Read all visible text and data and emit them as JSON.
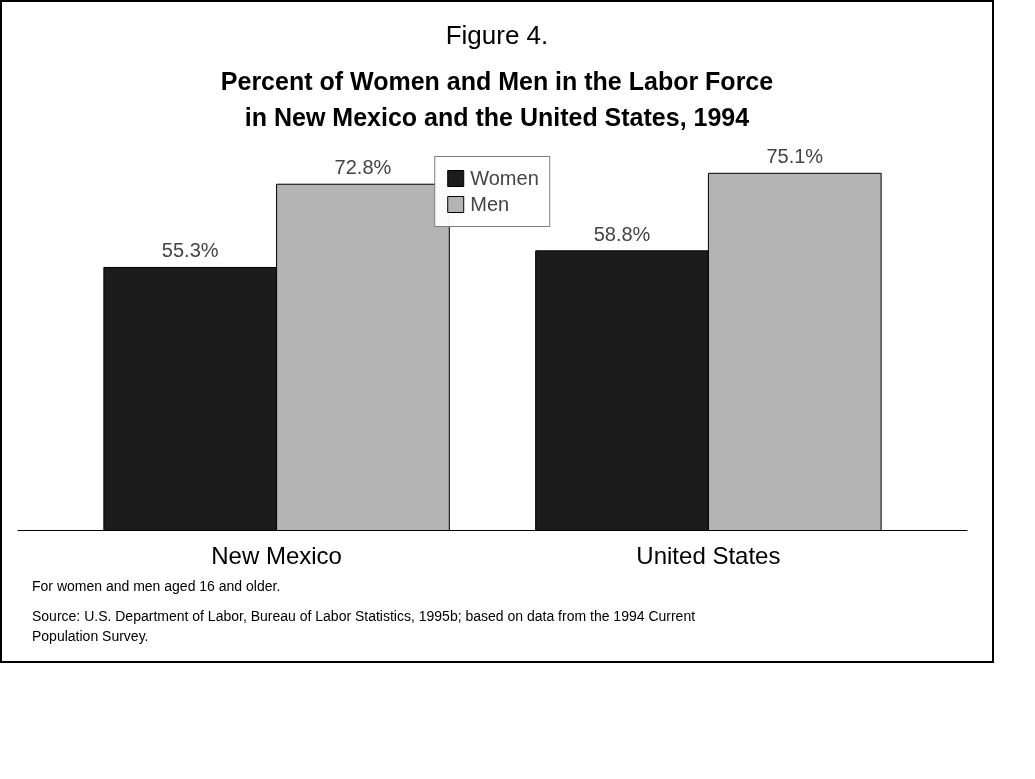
{
  "chart_data": {
    "type": "bar",
    "title": "Figure 4.",
    "subtitle": "Percent of Women and Men in the Labor Force\nin New Mexico  and the United States, 1994",
    "categories": [
      "New Mexico",
      "United States"
    ],
    "series": [
      {
        "name": "Women",
        "color": "#1c1c1c",
        "values": [
          55.3,
          58.8
        ],
        "value_labels": [
          "55.3%",
          "58.8%"
        ]
      },
      {
        "name": "Men",
        "color": "#b4b4b4",
        "values": [
          72.8,
          75.1
        ],
        "value_labels": [
          "72.8%",
          "75.1%"
        ]
      }
    ],
    "legend": "top",
    "grid": false,
    "annotations": [
      "For women and men aged 16 and older.",
      "Source:  U.S. Department of Labor, Bureau of Labor Statistics, 1995b; based on data from the 1994 Current Population Survey."
    ]
  }
}
